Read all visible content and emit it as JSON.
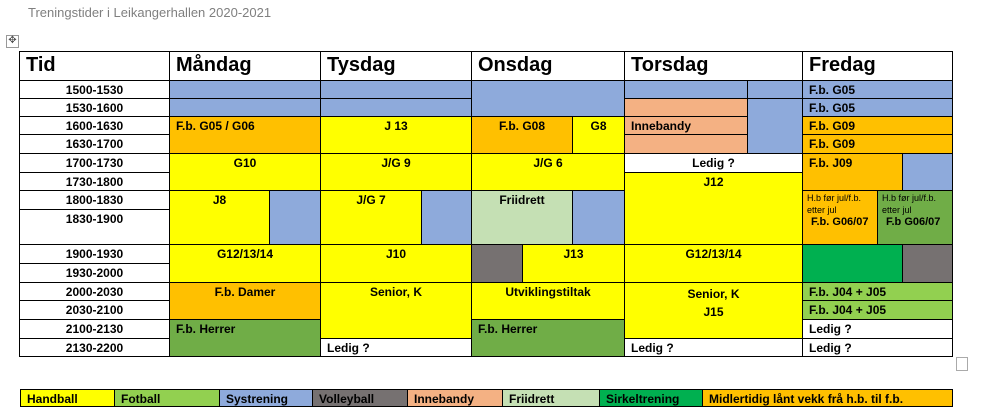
{
  "title": "Treningstider i Leikangerhallen 2020-2021",
  "headers": [
    "Tid",
    "Måndag",
    "Tysdag",
    "Onsdag",
    "Torsdag",
    "Fredag"
  ],
  "times": [
    "1500-1530",
    "1530-1600",
    "1600-1630",
    "1630-1700",
    "1700-1730",
    "1730-1800",
    "1800-1830",
    "1830-1900",
    "1900-1930",
    "1930-2000",
    "2000-2030",
    "2030-2100",
    "2100-2130",
    "2130-2200"
  ],
  "monday": {
    "fb_g05_g06": "F.b. G05 / G06",
    "g10": "G10",
    "j8": "J8",
    "g12": "G12/13/14",
    "fb_damer": "F.b. Damer",
    "fb_herrer": "F.b. Herrer"
  },
  "tuesday": {
    "j13": "J 13",
    "jg9": "J/G 9",
    "jg7": "J/G 7",
    "j10": "J10",
    "senior": "Senior, K",
    "ledig": "Ledig ?"
  },
  "wednesday": {
    "fb_g08": "F.b. G08",
    "g8": "G8",
    "jg6": "J/G 6",
    "friidrett": "Friidrett",
    "j13": "J13",
    "utvikling": "Utviklingstiltak",
    "fb_herrer": "F.b. Herrer"
  },
  "thursday": {
    "innebandy": "Innebandy",
    "ledig1": "Ledig ?",
    "j12": "J12",
    "g12": "G12/13/14",
    "senior": "Senior, K",
    "j15": "J15",
    "ledig2": "Ledig ?"
  },
  "friday": {
    "fb_g05_a": "F.b. G05",
    "fb_g05_b": "F.b. G05",
    "fb_g09_a": "F.b. G09",
    "fb_g09_b": "F.b. G09",
    "fb_j09": "F.b. J09",
    "hb_note_a": "H.b før jul/f.b. etter jul",
    "hb_group_a": "F.b. G06/07",
    "hb_note_b": "H.b før jul/f.b. etter jul",
    "hb_group_b": "F.b G06/07",
    "fb_j04_a": "F.b. J04 + J05",
    "fb_j04_b": "F.b. J04 + J05",
    "ledig1": "Ledig ?",
    "ledig2": "Ledig ?"
  },
  "legend": [
    "Handball",
    "Fotball",
    "Systrening",
    "Volleyball",
    "Innebandy",
    "Friidrett",
    "Sirkeltrening",
    "Midlertidig lånt vekk frå h.b. til f.b."
  ],
  "colors": {
    "handball": "#ffff00",
    "fotball": "#92d050",
    "systrening": "#8eaadb",
    "volleyball": "#767171",
    "innebandy": "#f4b183",
    "friidrett": "#c5e0b4",
    "sirkeltrening": "#00b050",
    "midlertidig": "#ffc000"
  }
}
